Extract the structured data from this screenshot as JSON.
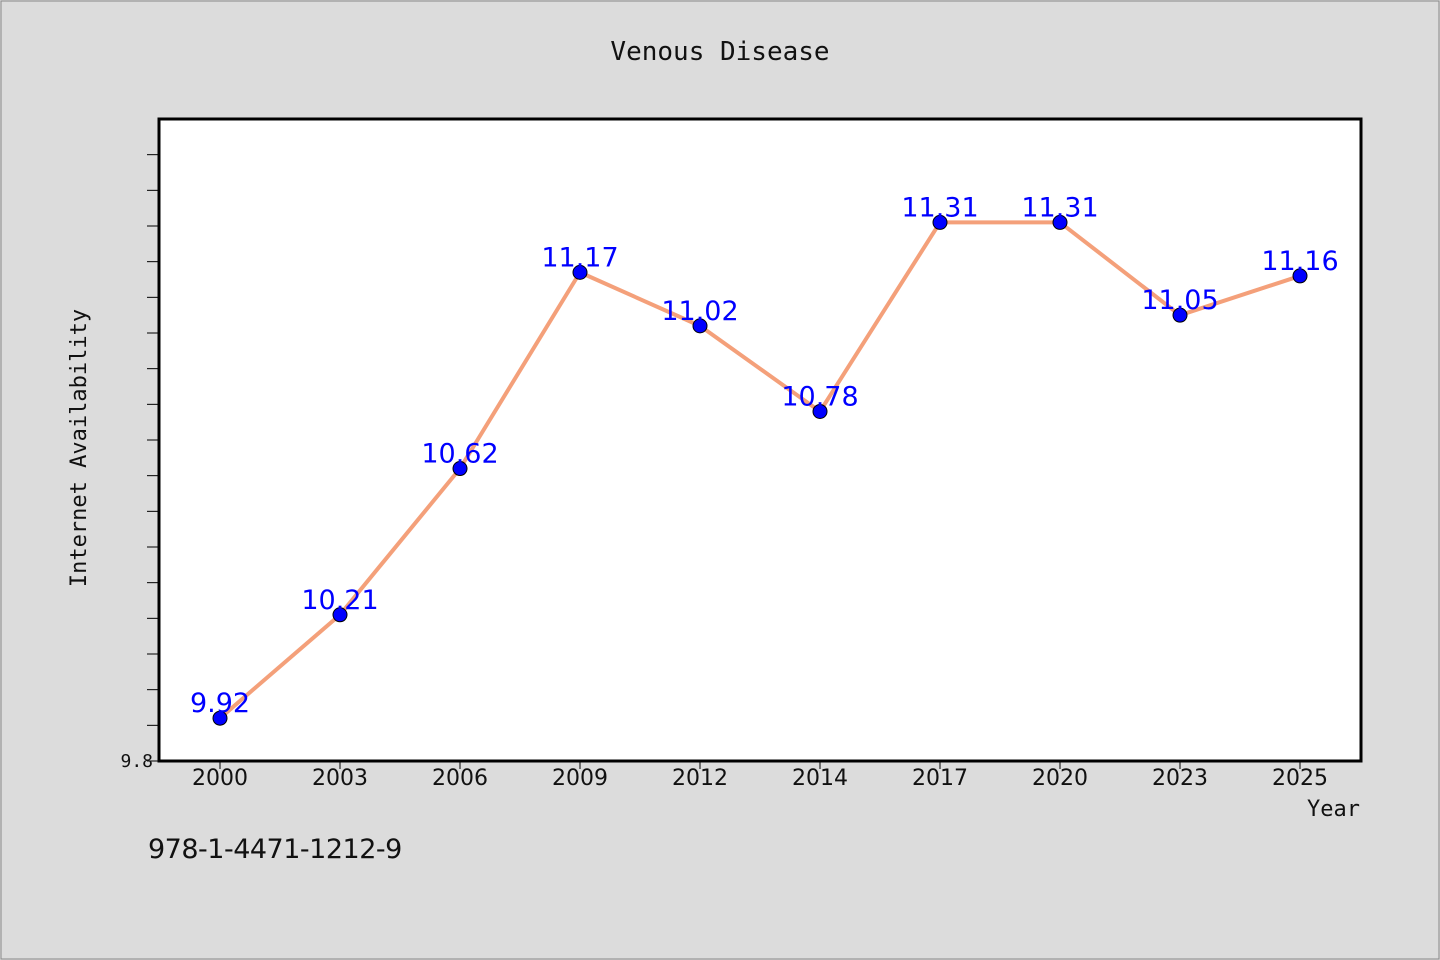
{
  "chart_data": {
    "type": "line",
    "title": "Venous Disease",
    "xlabel": "Year",
    "ylabel": "Internet Availability",
    "categories": [
      "2000",
      "2003",
      "2006",
      "2009",
      "2012",
      "2014",
      "2017",
      "2020",
      "2023",
      "2025"
    ],
    "series": [
      {
        "values": [
          9.92,
          10.21,
          10.62,
          11.17,
          11.02,
          10.78,
          11.31,
          11.31,
          11.05,
          11.16
        ],
        "labels": [
          "9.92",
          "10.21",
          "10.62",
          "11.17",
          "11.02",
          "10.78",
          "11.31",
          "11.31",
          "11.05",
          "11.16"
        ]
      }
    ],
    "ylim": [
      9.8,
      11.6
    ],
    "y_tick_labels": [
      "9.8"
    ],
    "grid": false,
    "colors": {
      "line": "#f4a07a",
      "marker": "#0000ff",
      "label": "#0000ff"
    }
  },
  "footer": {
    "code": "978-1-4471-1212-9"
  }
}
